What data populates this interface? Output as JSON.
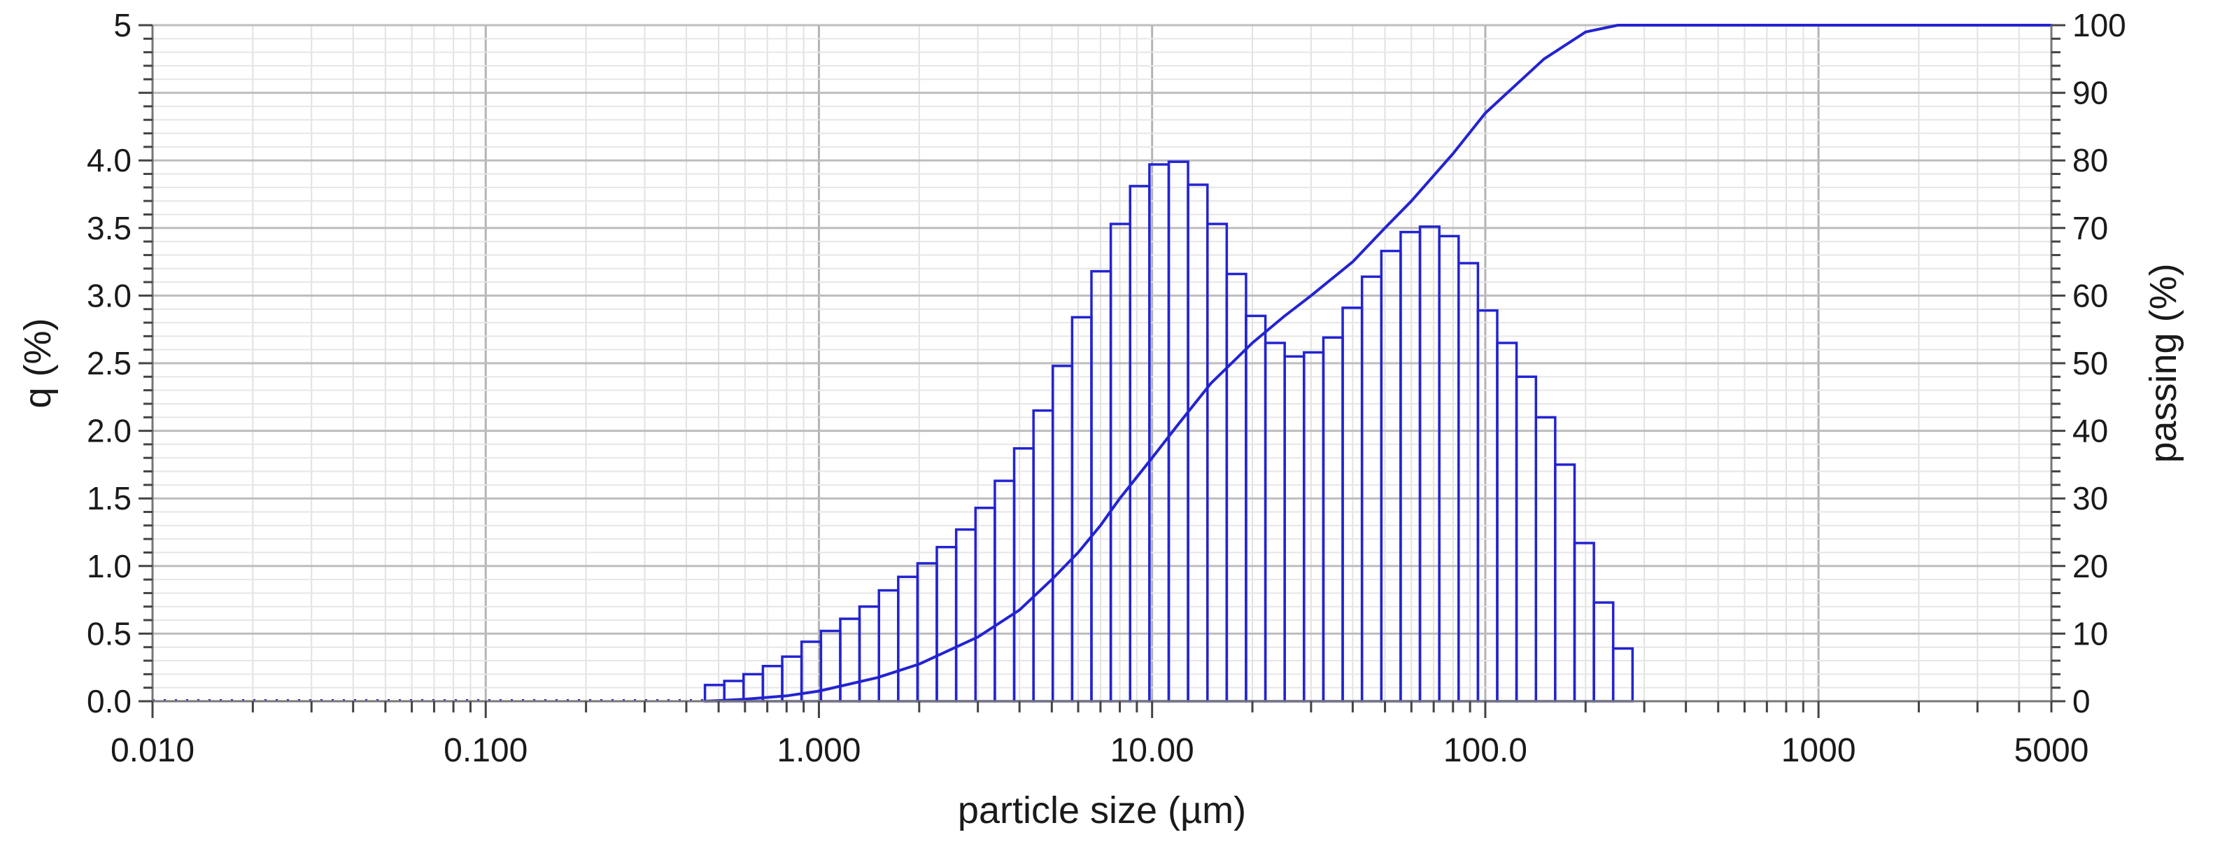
{
  "chart_data": {
    "type": "bar",
    "title": "",
    "xlabel": "particle size (µm)",
    "ylabel_left": "q (%)",
    "ylabel_right": "passing (%)",
    "x_scale": "log",
    "xlim": [
      0.01,
      5000
    ],
    "ylim_left": [
      0,
      5
    ],
    "ylim_right": [
      0,
      100
    ],
    "grid": true,
    "legend": "none",
    "x_tick_labels": [
      {
        "value": 0.01,
        "label": "0.010"
      },
      {
        "value": 0.1,
        "label": "0.100"
      },
      {
        "value": 1,
        "label": "1.000"
      },
      {
        "value": 10,
        "label": "10.00"
      },
      {
        "value": 100,
        "label": "100.0"
      },
      {
        "value": 1000,
        "label": "1000"
      },
      {
        "value": 5000,
        "label": "5000"
      }
    ],
    "y_left_tick_labels": [
      {
        "value": 0,
        "label": "0.0"
      },
      {
        "value": 0.5,
        "label": "0.5"
      },
      {
        "value": 1.0,
        "label": "1.0"
      },
      {
        "value": 1.5,
        "label": "1.5"
      },
      {
        "value": 2.0,
        "label": "2.0"
      },
      {
        "value": 2.5,
        "label": "2.5"
      },
      {
        "value": 3.0,
        "label": "3.0"
      },
      {
        "value": 3.5,
        "label": "3.5"
      },
      {
        "value": 4.0,
        "label": "4.0"
      },
      {
        "value": 5,
        "label": "5"
      }
    ],
    "y_right_tick_labels": [
      {
        "value": 0,
        "label": "0"
      },
      {
        "value": 10,
        "label": "10"
      },
      {
        "value": 20,
        "label": "20"
      },
      {
        "value": 30,
        "label": "30"
      },
      {
        "value": 40,
        "label": "40"
      },
      {
        "value": 50,
        "label": "50"
      },
      {
        "value": 60,
        "label": "60"
      },
      {
        "value": 70,
        "label": "70"
      },
      {
        "value": 80,
        "label": "80"
      },
      {
        "value": 90,
        "label": "90"
      },
      {
        "value": 100,
        "label": "100"
      }
    ],
    "series": [
      {
        "kind": "histogram",
        "color": "#2323d2",
        "bin_lower": [
          0.455,
          0.52,
          0.594,
          0.679,
          0.776,
          0.887,
          1.014,
          1.159,
          1.324,
          1.514,
          1.73,
          1.977,
          2.259,
          2.582,
          2.951,
          3.373,
          3.855,
          4.406,
          5.035,
          5.754,
          6.576,
          7.516,
          8.59,
          9.817,
          11.22,
          12.82,
          14.66,
          16.75,
          19.14,
          21.88,
          25.0,
          28.57,
          32.66,
          37.32,
          42.65,
          48.75,
          55.71,
          63.67,
          72.77,
          83.17,
          95.05,
          108.6,
          124.1,
          141.9,
          162.1,
          185.3,
          211.8,
          242.0
        ],
        "bin_upper": [
          0.52,
          0.594,
          0.679,
          0.776,
          0.887,
          1.014,
          1.159,
          1.324,
          1.514,
          1.73,
          1.977,
          2.259,
          2.582,
          2.951,
          3.373,
          3.855,
          4.406,
          5.035,
          5.754,
          6.576,
          7.516,
          8.59,
          9.817,
          11.22,
          12.82,
          14.66,
          16.75,
          19.14,
          21.88,
          25.0,
          28.57,
          32.66,
          37.32,
          42.65,
          48.75,
          55.71,
          63.67,
          72.77,
          83.17,
          95.05,
          108.6,
          124.1,
          141.9,
          162.1,
          185.3,
          211.8,
          242.0,
          276.6
        ],
        "values": [
          0.12,
          0.15,
          0.2,
          0.26,
          0.33,
          0.44,
          0.52,
          0.61,
          0.7,
          0.82,
          0.92,
          1.02,
          1.14,
          1.27,
          1.43,
          1.63,
          1.87,
          2.15,
          2.48,
          2.84,
          3.18,
          3.53,
          3.81,
          3.97,
          3.99,
          3.82,
          3.53,
          3.16,
          2.85,
          2.65,
          2.55,
          2.58,
          2.69,
          2.91,
          3.14,
          3.33,
          3.47,
          3.51,
          3.44,
          3.24,
          2.89,
          2.65,
          2.4,
          2.1,
          1.75,
          1.17,
          0.73,
          0.39
        ]
      },
      {
        "kind": "line",
        "axis": "right",
        "color": "#2323d2",
        "x": [
          0.455,
          0.6,
          0.8,
          1.0,
          1.5,
          2.0,
          3.0,
          4.0,
          5.0,
          6.0,
          7.0,
          8.0,
          10.0,
          12.0,
          15.0,
          20.0,
          25.0,
          30.0,
          40.0,
          50.0,
          60.0,
          80.0,
          100.0,
          150.0,
          200.0,
          250.0,
          300.0,
          1000.0,
          5000.0
        ],
        "y": [
          0,
          0.3,
          0.8,
          1.5,
          3.5,
          5.5,
          9.5,
          13.5,
          18,
          22,
          26,
          30,
          36,
          41,
          47,
          53,
          57,
          60,
          65,
          70,
          74,
          81,
          87,
          95,
          99,
          100,
          100,
          100,
          100
        ]
      },
      {
        "kind": "dotted-baseline",
        "color": "#2323d2",
        "x": [
          0.01,
          0.455
        ],
        "y": [
          0,
          0
        ]
      }
    ]
  }
}
